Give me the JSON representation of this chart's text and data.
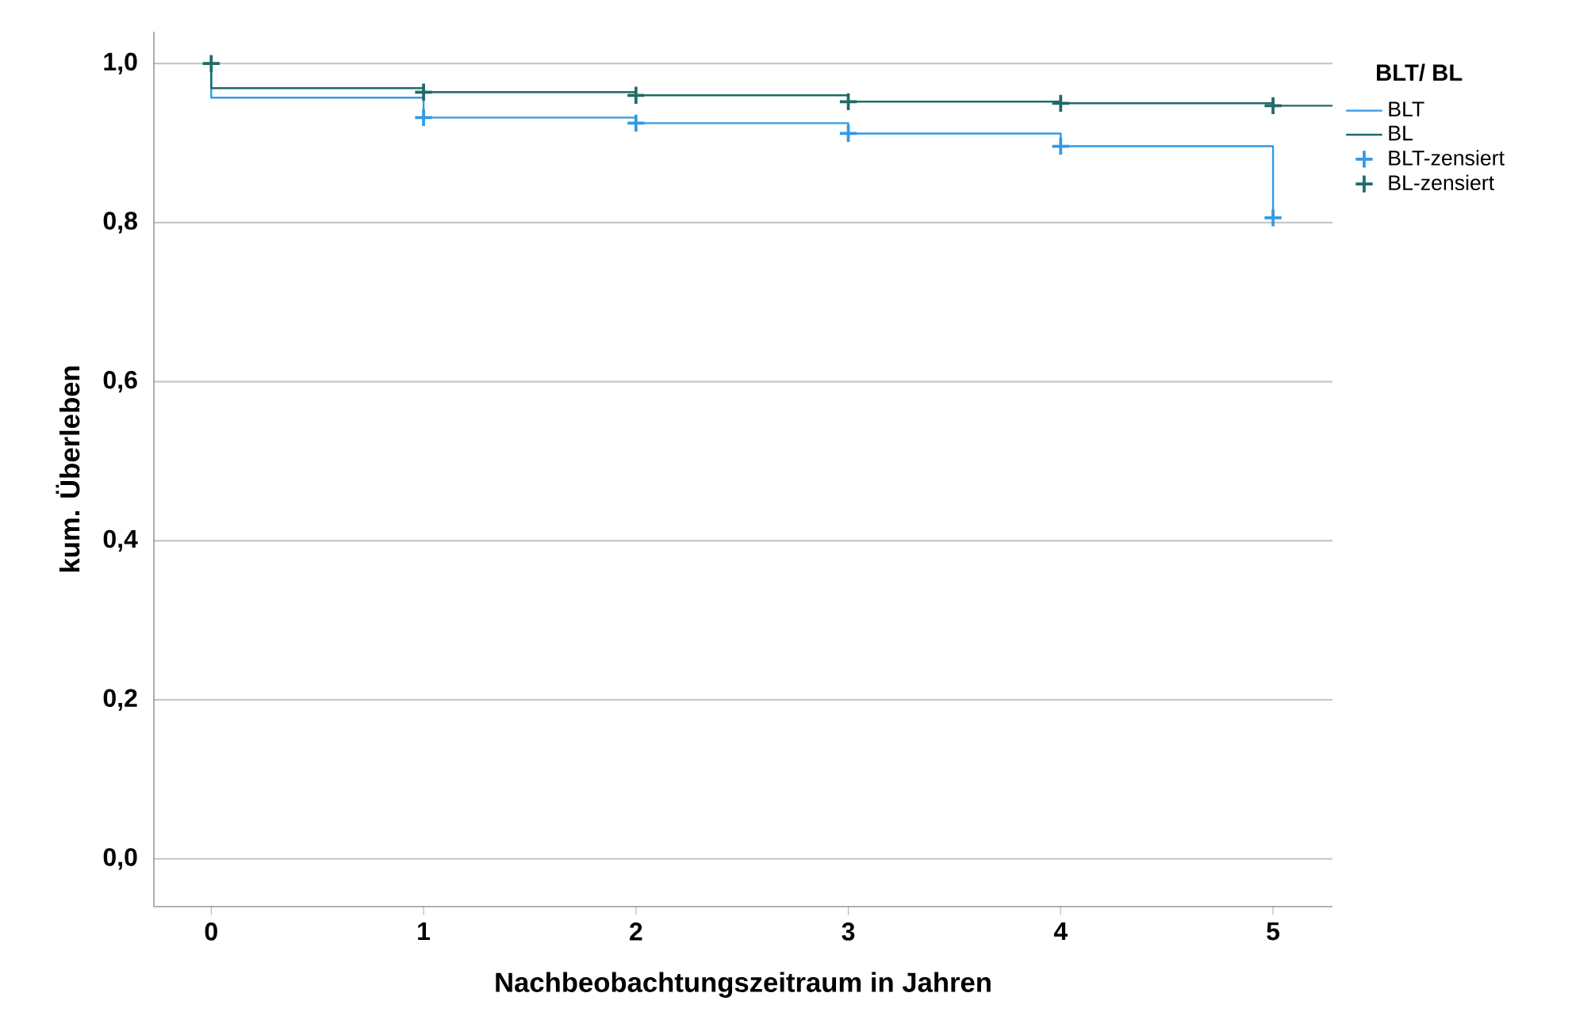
{
  "chart_data": {
    "type": "step",
    "xlabel": "Nachbeobachtungszeitraum in Jahren",
    "ylabel": "kum. Überleben",
    "legend_title": "BLT/ BL",
    "legend": "right",
    "grid": "y",
    "xlim": [
      -0.27,
      5.28
    ],
    "ylim": [
      -0.06,
      1.04
    ],
    "xticks": [
      0,
      1,
      2,
      3,
      4,
      5
    ],
    "yticks": [
      {
        "value": 0,
        "label": "0,0"
      },
      {
        "value": 0.2,
        "label": "0,2"
      },
      {
        "value": 0.4,
        "label": "0,4"
      },
      {
        "value": 0.6,
        "label": "0,6"
      },
      {
        "value": 0.8,
        "label": "0,8"
      },
      {
        "value": 1.0,
        "label": "1,0"
      }
    ],
    "series": [
      {
        "name": "BLT",
        "color": "#3399e6",
        "x": [
          0,
          0,
          1,
          2,
          3,
          4,
          5
        ],
        "values": [
          1.0,
          0.957,
          0.932,
          0.925,
          0.912,
          0.896,
          0.806
        ]
      },
      {
        "name": "BL",
        "color": "#1f6b66",
        "x": [
          0,
          0,
          1,
          2,
          3,
          4,
          5,
          5.28
        ],
        "values": [
          1.0,
          0.969,
          0.964,
          0.96,
          0.952,
          0.95,
          0.947,
          0.947
        ]
      },
      {
        "name": "BLT-zensiert",
        "type": "scatter",
        "marker": "cross",
        "color": "#3399e6",
        "x": [
          1,
          2,
          3,
          4,
          5
        ],
        "values": [
          0.932,
          0.925,
          0.912,
          0.896,
          0.806
        ]
      },
      {
        "name": "BL-zensiert",
        "type": "scatter",
        "marker": "cross",
        "color": "#1f6b66",
        "x": [
          0,
          1,
          2,
          3,
          4,
          5
        ],
        "values": [
          1.0,
          0.964,
          0.96,
          0.952,
          0.95,
          0.947
        ]
      }
    ]
  }
}
